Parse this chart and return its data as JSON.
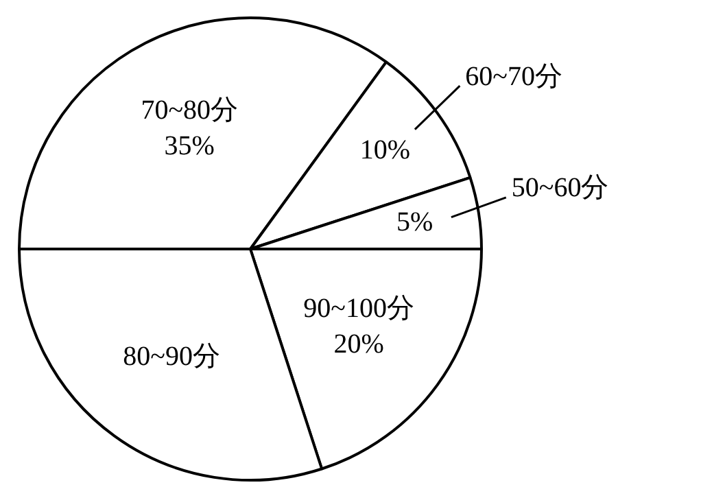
{
  "chart_data": {
    "type": "pie",
    "categories": [
      "70~80分",
      "60~70分",
      "50~60分",
      "90~100分",
      "80~90分"
    ],
    "values": [
      35,
      10,
      5,
      20,
      30
    ],
    "colors": [
      "#ffffff",
      "#ffffff",
      "#ffffff",
      "#ffffff",
      "#ffffff"
    ],
    "value_labels": [
      "35%",
      "10%",
      "5%",
      "20%",
      null
    ],
    "legend": false
  }
}
